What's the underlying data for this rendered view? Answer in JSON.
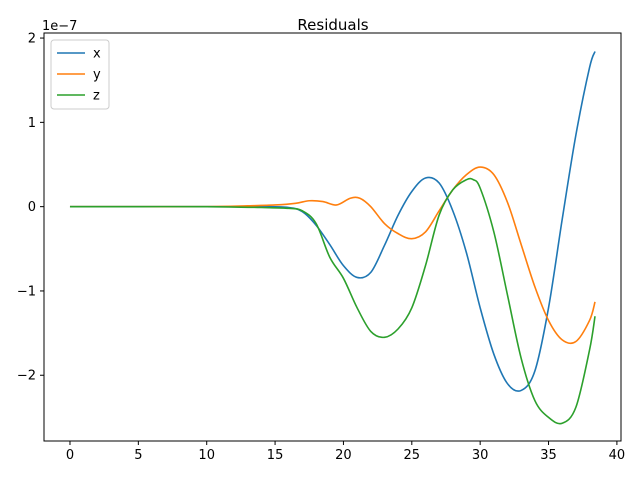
{
  "chart_data": {
    "type": "line",
    "title": "Residuals",
    "xlabel": "",
    "ylabel": "",
    "y_scale_label": "1e−7",
    "xlim": [
      -1.9,
      40.3
    ],
    "ylim": [
      -2.78,
      2.06
    ],
    "xticks": [
      0,
      5,
      10,
      15,
      20,
      25,
      30,
      35,
      40
    ],
    "xtick_labels": [
      "0",
      "5",
      "10",
      "15",
      "20",
      "25",
      "30",
      "35",
      "40"
    ],
    "yticks": [
      -2,
      -1,
      0,
      1,
      2
    ],
    "ytick_labels": [
      "−2",
      "−1",
      "0",
      "1",
      "2"
    ],
    "grid": false,
    "legend_position": "upper-left",
    "series": [
      {
        "name": "x",
        "color": "#1f77b4",
        "points": [
          [
            0,
            0
          ],
          [
            5,
            0
          ],
          [
            10,
            0
          ],
          [
            14,
            0
          ],
          [
            16,
            -0.01
          ],
          [
            17,
            -0.06
          ],
          [
            18,
            -0.22
          ],
          [
            19,
            -0.45
          ],
          [
            20,
            -0.7
          ],
          [
            21,
            -0.84
          ],
          [
            22,
            -0.78
          ],
          [
            23,
            -0.46
          ],
          [
            24,
            -0.1
          ],
          [
            25,
            0.18
          ],
          [
            26,
            0.34
          ],
          [
            27,
            0.28
          ],
          [
            28,
            -0.05
          ],
          [
            29,
            -0.55
          ],
          [
            30,
            -1.2
          ],
          [
            31,
            -1.75
          ],
          [
            32,
            -2.1
          ],
          [
            33,
            -2.18
          ],
          [
            34,
            -1.95
          ],
          [
            35,
            -1.2
          ],
          [
            36,
            -0.15
          ],
          [
            37,
            0.85
          ],
          [
            38,
            1.65
          ],
          [
            38.4,
            1.84
          ]
        ]
      },
      {
        "name": "y",
        "color": "#ff7f0e",
        "points": [
          [
            0,
            0
          ],
          [
            5,
            0
          ],
          [
            10,
            0
          ],
          [
            13,
            0.01
          ],
          [
            15,
            0.02
          ],
          [
            16.5,
            0.04
          ],
          [
            17.5,
            0.07
          ],
          [
            18.5,
            0.06
          ],
          [
            19.5,
            0.02
          ],
          [
            20.5,
            0.1
          ],
          [
            21.2,
            0.1
          ],
          [
            22,
            0.0
          ],
          [
            23,
            -0.2
          ],
          [
            24,
            -0.32
          ],
          [
            25,
            -0.38
          ],
          [
            26,
            -0.3
          ],
          [
            27,
            -0.05
          ],
          [
            28,
            0.2
          ],
          [
            29,
            0.38
          ],
          [
            30,
            0.47
          ],
          [
            31,
            0.38
          ],
          [
            32,
            0.05
          ],
          [
            33,
            -0.45
          ],
          [
            34,
            -0.95
          ],
          [
            35,
            -1.35
          ],
          [
            36,
            -1.58
          ],
          [
            37,
            -1.6
          ],
          [
            38,
            -1.35
          ],
          [
            38.4,
            -1.13
          ]
        ]
      },
      {
        "name": "z",
        "color": "#2ca02c",
        "points": [
          [
            0,
            0
          ],
          [
            5,
            0
          ],
          [
            10,
            0
          ],
          [
            14,
            -0.01
          ],
          [
            16,
            -0.02
          ],
          [
            17,
            -0.05
          ],
          [
            18,
            -0.2
          ],
          [
            19,
            -0.6
          ],
          [
            20,
            -0.85
          ],
          [
            21,
            -1.2
          ],
          [
            22,
            -1.48
          ],
          [
            23,
            -1.55
          ],
          [
            24,
            -1.45
          ],
          [
            25,
            -1.2
          ],
          [
            26,
            -0.7
          ],
          [
            27,
            -0.1
          ],
          [
            28,
            0.2
          ],
          [
            29,
            0.32
          ],
          [
            29.5,
            0.32
          ],
          [
            30,
            0.22
          ],
          [
            31,
            -0.3
          ],
          [
            32,
            -1.05
          ],
          [
            33,
            -1.8
          ],
          [
            34,
            -2.3
          ],
          [
            35,
            -2.5
          ],
          [
            36,
            -2.57
          ],
          [
            37,
            -2.38
          ],
          [
            38,
            -1.7
          ],
          [
            38.4,
            -1.3
          ]
        ]
      }
    ]
  }
}
